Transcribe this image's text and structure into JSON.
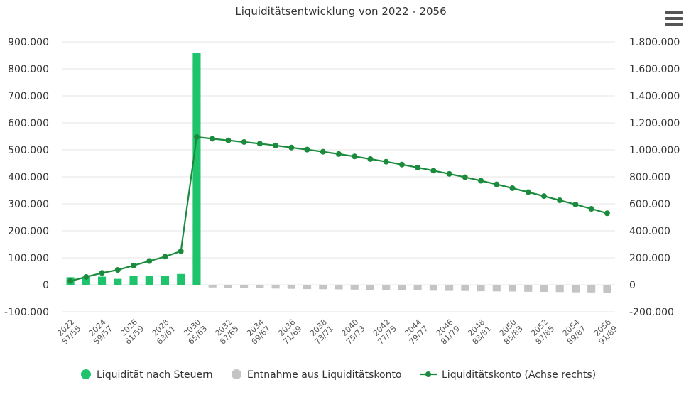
{
  "menu": {
    "icon": "hamburger-menu-icon"
  },
  "legend": [
    {
      "label": "Liquidität nach Steuern",
      "color": "#1ec36b",
      "symbol": "circle"
    },
    {
      "label": "Entnahme aus Liquiditätskonto",
      "color": "#c4c4c4",
      "symbol": "circle"
    },
    {
      "label": "Liquiditätskonto (Achse rechts)",
      "color": "#1a8b3c",
      "symbol": "line-marker"
    }
  ],
  "chart_data": {
    "type": "bar",
    "title": "Liquiditätsentwicklung von 2022 - 2056",
    "categories": [
      "2022",
      "2023",
      "2024",
      "2025",
      "2026",
      "2027",
      "2028",
      "2029",
      "2030",
      "2031",
      "2032",
      "2033",
      "2034",
      "2035",
      "2036",
      "2037",
      "2038",
      "2039",
      "2040",
      "2041",
      "2042",
      "2043",
      "2044",
      "2045",
      "2046",
      "2047",
      "2048",
      "2049",
      "2050",
      "2051",
      "2052",
      "2053",
      "2054",
      "2055",
      "2056"
    ],
    "category_sublabels": [
      "57/55",
      "58/56",
      "59/57",
      "60/58",
      "61/59",
      "62/60",
      "63/61",
      "64/62",
      "65/63",
      "66/64",
      "67/65",
      "68/66",
      "69/67",
      "70/68",
      "71/69",
      "72/70",
      "73/71",
      "74/72",
      "75/73",
      "76/74",
      "77/75",
      "78/76",
      "79/77",
      "80/78",
      "81/79",
      "82/80",
      "83/81",
      "84/82",
      "85/83",
      "86/84",
      "87/85",
      "88/86",
      "89/87",
      "90/88",
      "91/89"
    ],
    "x_tick_labels": [
      {
        "year": "2022",
        "ages": "57/55"
      },
      {
        "year": "2024",
        "ages": "59/57"
      },
      {
        "year": "2026",
        "ages": "61/59"
      },
      {
        "year": "2028",
        "ages": "63/61"
      },
      {
        "year": "2030",
        "ages": "65/63"
      },
      {
        "year": "2032",
        "ages": "67/65"
      },
      {
        "year": "2034",
        "ages": "69/67"
      },
      {
        "year": "2036",
        "ages": "71/69"
      },
      {
        "year": "2038",
        "ages": "73/71"
      },
      {
        "year": "2040",
        "ages": "75/73"
      },
      {
        "year": "2042",
        "ages": "77/75"
      },
      {
        "year": "2044",
        "ages": "79/77"
      },
      {
        "year": "2046",
        "ages": "81/79"
      },
      {
        "year": "2048",
        "ages": "83/81"
      },
      {
        "year": "2050",
        "ages": "85/83"
      },
      {
        "year": "2052",
        "ages": "87/85"
      },
      {
        "year": "2054",
        "ages": "89/87"
      },
      {
        "year": "2056",
        "ages": "91/89"
      }
    ],
    "series": [
      {
        "name": "Liquidität nach Steuern",
        "type": "column",
        "axis": "left",
        "color": "#1ec36b",
        "values": [
          28000,
          30000,
          30000,
          22000,
          33000,
          33000,
          33000,
          40000,
          860000,
          0,
          0,
          0,
          0,
          0,
          0,
          0,
          0,
          0,
          0,
          0,
          0,
          0,
          0,
          0,
          0,
          0,
          0,
          0,
          0,
          0,
          0,
          0,
          0,
          0,
          0
        ]
      },
      {
        "name": "Entnahme aus Liquiditätskonto",
        "type": "column",
        "axis": "left",
        "color": "#c4c4c4",
        "values": [
          0,
          0,
          0,
          0,
          0,
          0,
          0,
          0,
          0,
          -10000,
          -11000,
          -12000,
          -13000,
          -14000,
          -15000,
          -16000,
          -16500,
          -17000,
          -18000,
          -19000,
          -19500,
          -20000,
          -21000,
          -22000,
          -22500,
          -23000,
          -24000,
          -24500,
          -25000,
          -26000,
          -26500,
          -27000,
          -28000,
          -28500,
          -29000
        ]
      },
      {
        "name": "Liquiditätskonto (Achse rechts)",
        "type": "line",
        "axis": "right",
        "color": "#1a8b3c",
        "values": [
          28000,
          58000,
          88000,
          110000,
          143000,
          176000,
          209000,
          249000,
          1095000,
          1082000,
          1070000,
          1058000,
          1046000,
          1032000,
          1017000,
          1002000,
          986000,
          969000,
          951000,
          932000,
          912000,
          891000,
          869000,
          846000,
          822000,
          797000,
          771000,
          744000,
          716000,
          687000,
          657000,
          626000,
          595000,
          563000,
          530000
        ]
      }
    ],
    "y_left": {
      "ylim": [
        -100000,
        900000
      ],
      "ticks": [
        "-100.000",
        "0",
        "100.000",
        "200.000",
        "300.000",
        "400.000",
        "500.000",
        "600.000",
        "700.000",
        "800.000",
        "900.000"
      ]
    },
    "y_right": {
      "ylim": [
        -200000,
        1800000
      ],
      "ticks": [
        "-200.000",
        "0",
        "200.000",
        "400.000",
        "600.000",
        "800.000",
        "1.000.000",
        "1.200.000",
        "1.400.000",
        "1.600.000",
        "1.800.000"
      ]
    },
    "grid": true,
    "legend_position": "bottom"
  }
}
